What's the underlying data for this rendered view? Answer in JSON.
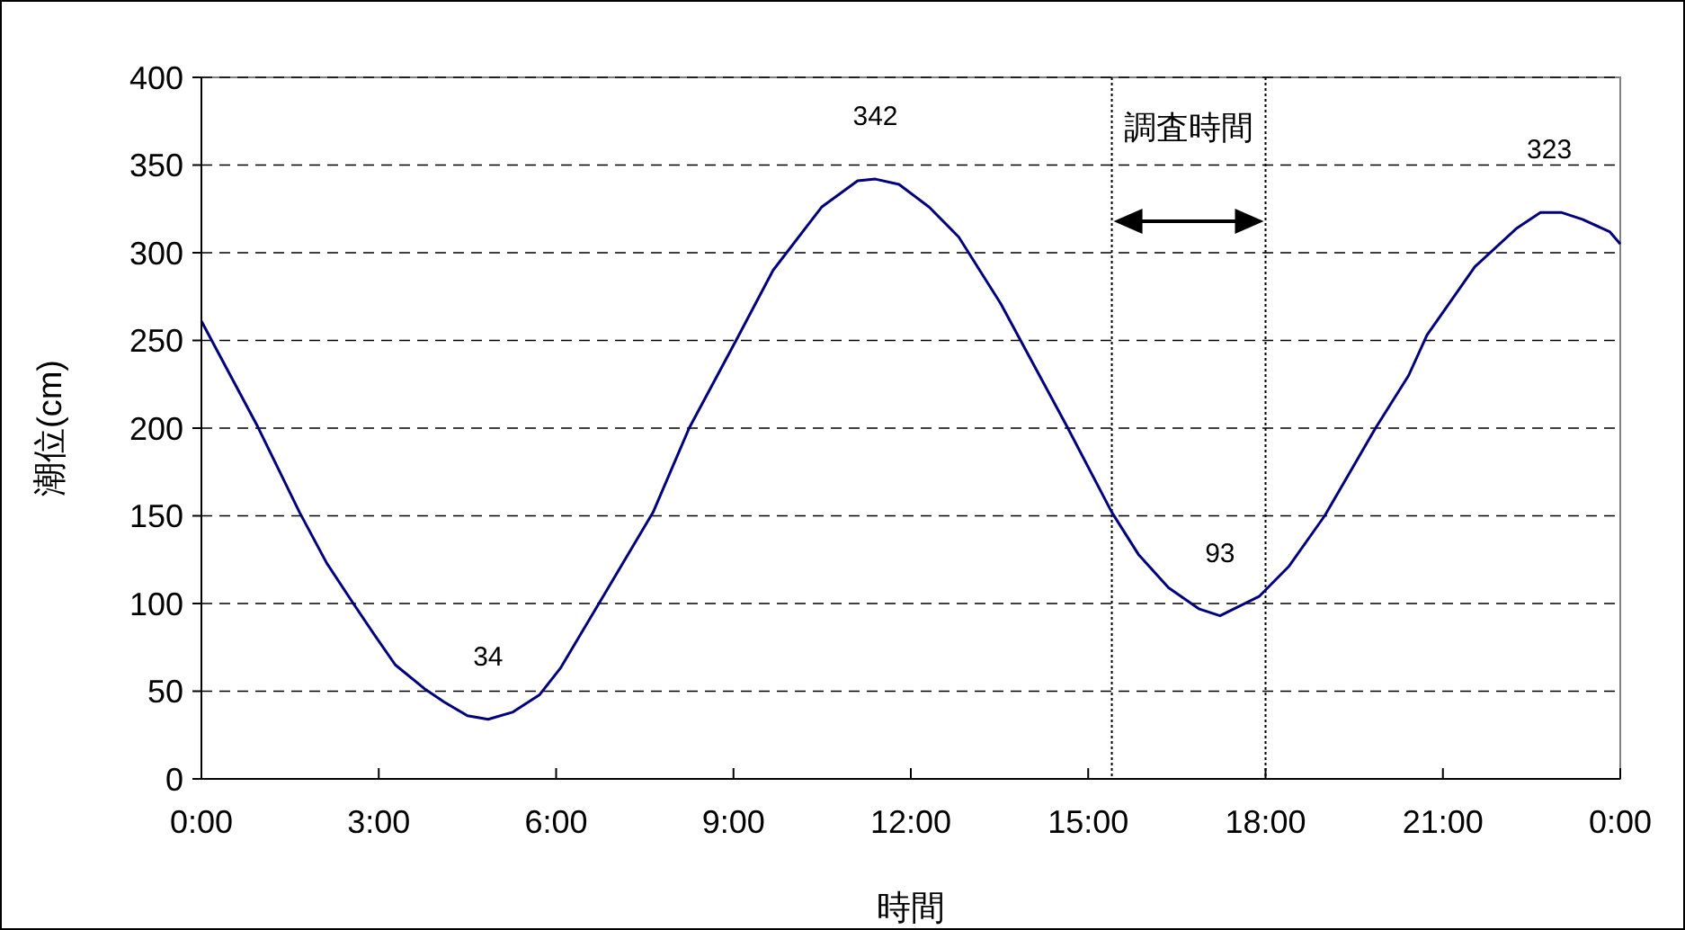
{
  "chart_data": {
    "type": "line",
    "xlabel": "時間",
    "ylabel": "潮位(cm)",
    "xlim": [
      0,
      24
    ],
    "xticks": [
      {
        "value": 0,
        "label": "0:00"
      },
      {
        "value": 3,
        "label": "3:00"
      },
      {
        "value": 6,
        "label": "6:00"
      },
      {
        "value": 9,
        "label": "9:00"
      },
      {
        "value": 12,
        "label": "12:00"
      },
      {
        "value": 15,
        "label": "15:00"
      },
      {
        "value": 18,
        "label": "18:00"
      },
      {
        "value": 21,
        "label": "21:00"
      },
      {
        "value": 24,
        "label": "0:00"
      }
    ],
    "ylim": [
      0,
      400
    ],
    "yticks": [
      0,
      50,
      100,
      150,
      200,
      250,
      300,
      350,
      400
    ],
    "grid": "y",
    "marker": "none",
    "line_style": "solid",
    "series": [
      {
        "color": "#000080",
        "x": [
          0,
          0.95,
          1.66,
          2.12,
          2.57,
          2.93,
          3.28,
          3.79,
          4.1,
          4.5,
          4.85,
          5.26,
          5.72,
          6.07,
          6.83,
          7.64,
          8.25,
          9.06,
          9.67,
          10.49,
          11.1,
          11.4,
          11.8,
          12.31,
          12.81,
          13.52,
          14.64,
          15.4,
          15.85,
          16.36,
          16.87,
          17.23,
          17.89,
          18.39,
          19,
          19.86,
          20.42,
          20.73,
          21.54,
          22.25,
          22.65,
          23,
          23.36,
          23.82,
          24
        ],
        "values": [
          261,
          201,
          152,
          123,
          100,
          82,
          65,
          51,
          44,
          36,
          34,
          38,
          48,
          63,
          106,
          152,
          200,
          251,
          290,
          326,
          341,
          342,
          339,
          326,
          309,
          271,
          201,
          152,
          128,
          109,
          97,
          93,
          104,
          121,
          150,
          200,
          230,
          253,
          292,
          314,
          323,
          323,
          319,
          312,
          305
        ]
      }
    ],
    "ref_lines": [
      {
        "axis": "x",
        "value": 15.4,
        "line_style": "dotted",
        "color": "#000000"
      },
      {
        "axis": "x",
        "value": 18,
        "line_style": "dotted",
        "color": "#000000"
      }
    ],
    "annotations": [
      {
        "text": "34",
        "x": 4.85,
        "y": 34
      },
      {
        "text": "342",
        "x": 11.4,
        "y": 342
      },
      {
        "text": "93",
        "x": 17.23,
        "y": 93
      },
      {
        "text": "323",
        "x": 22.8,
        "y": 323
      },
      "調査時間"
    ]
  }
}
